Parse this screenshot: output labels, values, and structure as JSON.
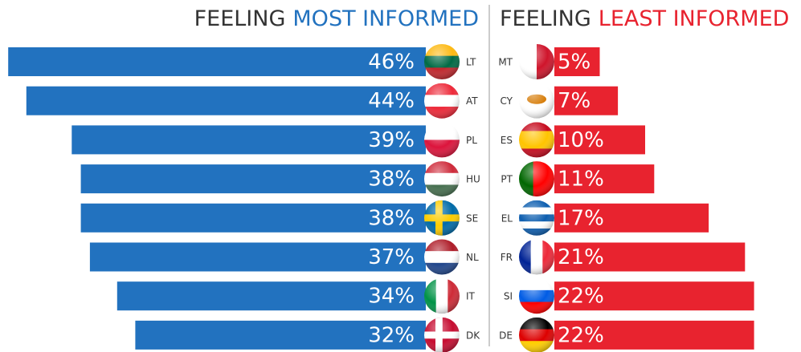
{
  "chart_data": [
    {
      "type": "bar",
      "orientation": "horizontal",
      "title_lead": "FEELING",
      "title_emphasis": "MOST INFORMED",
      "categories": [
        "LT",
        "AT",
        "PL",
        "HU",
        "SE",
        "NL",
        "IT",
        "DK"
      ],
      "values": [
        46,
        44,
        39,
        38,
        38,
        37,
        34,
        32
      ],
      "value_labels": [
        "46%",
        "44%",
        "39%",
        "38%",
        "38%",
        "37%",
        "34%",
        "32%"
      ],
      "color": "#2272bf",
      "xlim": [
        0,
        50
      ]
    },
    {
      "type": "bar",
      "orientation": "horizontal",
      "title_lead": "FEELING",
      "title_emphasis": "LEAST INFORMED",
      "categories": [
        "MT",
        "CY",
        "ES",
        "PT",
        "EL",
        "FR",
        "SI",
        "DE"
      ],
      "values": [
        5,
        7,
        10,
        11,
        17,
        21,
        22,
        22
      ],
      "value_labels": [
        "5%",
        "7%",
        "10%",
        "11%",
        "17%",
        "21%",
        "22%",
        "22%"
      ],
      "color": "#e8232f",
      "xlim": [
        0,
        50
      ]
    }
  ]
}
